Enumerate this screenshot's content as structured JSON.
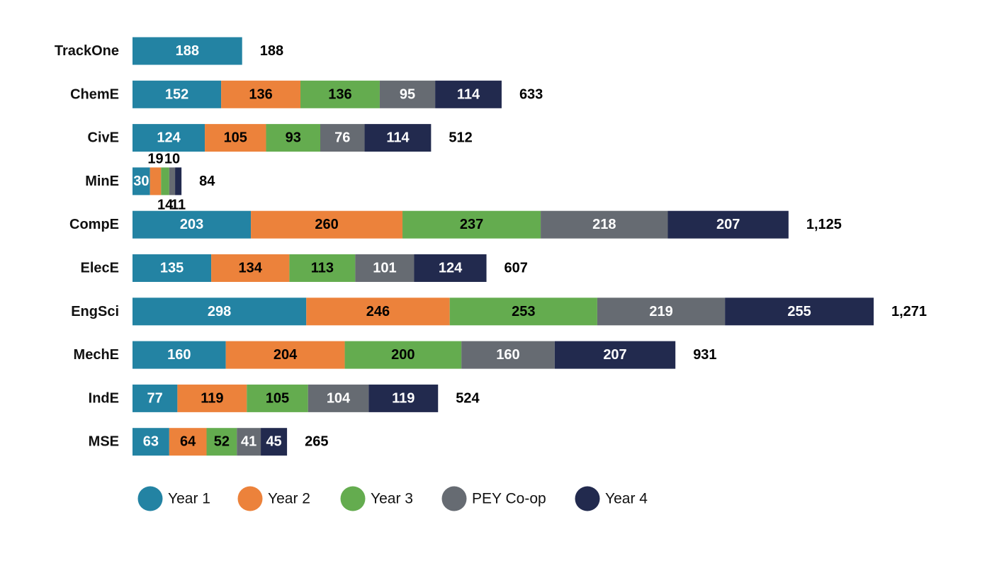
{
  "chart_data": {
    "type": "bar",
    "orientation": "horizontal",
    "stacked": true,
    "title": "",
    "xlabel": "",
    "ylabel": "",
    "categories": [
      "TrackOne",
      "ChemE",
      "CivE",
      "MinE",
      "CompE",
      "ElecE",
      "EngSci",
      "MechE",
      "IndE",
      "MSE"
    ],
    "series": [
      {
        "name": "Year 1",
        "color": "#2383A3",
        "label_color": "#ffffff",
        "values": [
          188,
          152,
          124,
          30,
          203,
          135,
          298,
          160,
          77,
          63
        ]
      },
      {
        "name": "Year 2",
        "color": "#EC823B",
        "label_color": "#000000",
        "values": [
          null,
          136,
          105,
          19,
          260,
          134,
          246,
          204,
          119,
          64
        ]
      },
      {
        "name": "Year 3",
        "color": "#64AC4F",
        "label_color": "#000000",
        "values": [
          null,
          136,
          93,
          14,
          237,
          113,
          253,
          200,
          105,
          52
        ]
      },
      {
        "name": "PEY Co-op",
        "color": "#666B72",
        "label_color": "#ffffff",
        "values": [
          null,
          95,
          76,
          10,
          218,
          101,
          219,
          160,
          104,
          41
        ]
      },
      {
        "name": "Year 4",
        "color": "#222A4E",
        "label_color": "#ffffff",
        "values": [
          null,
          114,
          114,
          11,
          207,
          124,
          255,
          207,
          119,
          45
        ]
      }
    ],
    "totals": [
      "188",
      "633",
      "512",
      "84",
      "1,125",
      "607",
      "1,271",
      "931",
      "524",
      "265"
    ],
    "xlim": [
      0,
      1271
    ],
    "grid": false,
    "legend": "bottom"
  }
}
